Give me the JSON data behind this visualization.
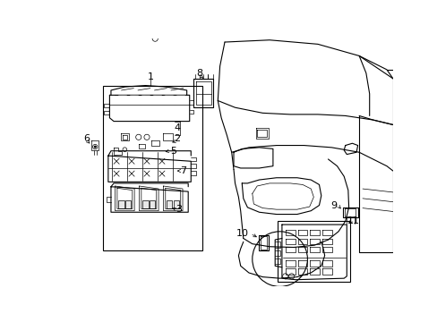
{
  "background_color": "#ffffff",
  "fig_width": 4.89,
  "fig_height": 3.6,
  "dpi": 100,
  "lc": "#000000",
  "lw": 0.8,
  "tlw": 0.5
}
